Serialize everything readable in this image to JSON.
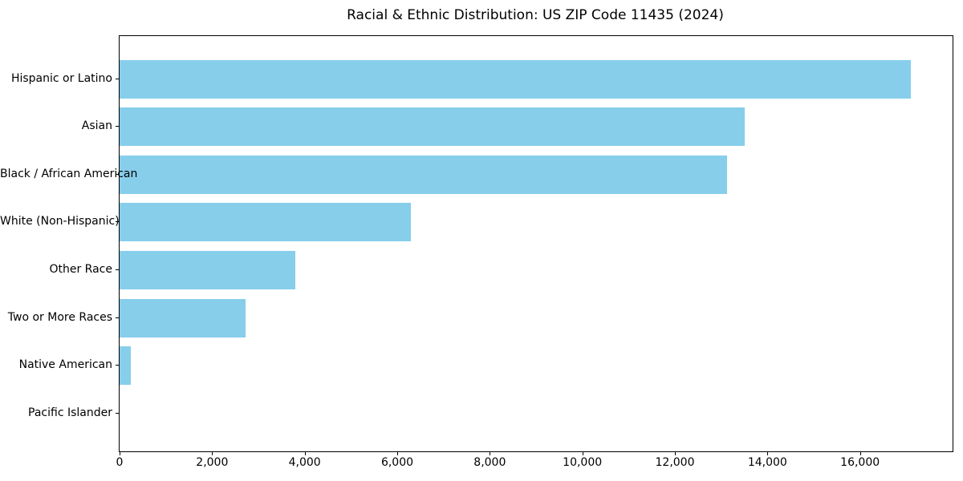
{
  "chart_data": {
    "type": "bar",
    "orientation": "horizontal",
    "title": "Racial & Ethnic Distribution: US ZIP Code 11435 (2024)",
    "categories": [
      "Hispanic or Latino",
      "Asian",
      "Black / African American",
      "White (Non-Hispanic)",
      "Other Race",
      "Two or More Races",
      "Native American",
      "Pacific Islander"
    ],
    "values": [
      17100,
      13500,
      13130,
      6290,
      3790,
      2720,
      240,
      0
    ],
    "xlabel": "",
    "ylabel": "",
    "xlim": [
      0,
      18000
    ],
    "xticks": [
      0,
      2000,
      4000,
      6000,
      8000,
      10000,
      12000,
      14000,
      16000
    ],
    "xtick_labels": [
      "0",
      "2,000",
      "4,000",
      "6,000",
      "8,000",
      "10,000",
      "12,000",
      "14,000",
      "16,000"
    ],
    "bar_color": "#87CEEB",
    "background_color": "#ffffff",
    "spine_color": "#000000",
    "grid": false,
    "legend": null
  }
}
